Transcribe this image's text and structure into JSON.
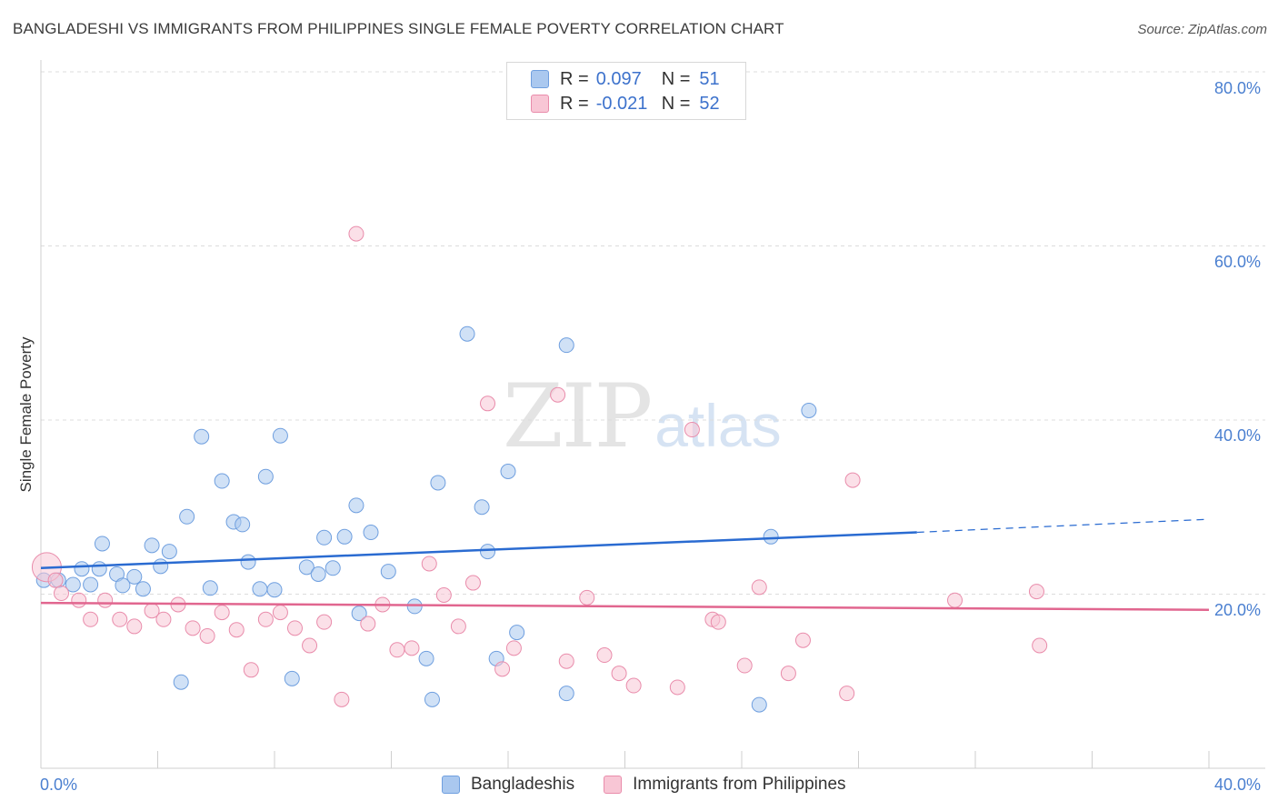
{
  "header": {
    "title": "BANGLADESHI VS IMMIGRANTS FROM PHILIPPINES SINGLE FEMALE POVERTY CORRELATION CHART",
    "source": "Source: ZipAtlas.com"
  },
  "watermark": {
    "zip": "ZIP",
    "atlas": "atlas"
  },
  "legend": {
    "rows": [
      {
        "r_label": "R =",
        "r_value": "0.097",
        "n_label": "N =",
        "n_value": "51",
        "color": "#aac8ef",
        "border": "#6f9fdf"
      },
      {
        "r_label": "R =",
        "r_value": "-0.021",
        "n_label": "N =",
        "n_value": "52",
        "color": "#f8c6d5",
        "border": "#e98cab"
      }
    ]
  },
  "bottom_legend": {
    "items": [
      {
        "label": "Bangladeshis",
        "color": "#aac8ef",
        "border": "#6f9fdf"
      },
      {
        "label": "Immigrants from Philippines",
        "color": "#f8c6d5",
        "border": "#e98cab"
      }
    ]
  },
  "chart_data": {
    "type": "scatter",
    "title": "BANGLADESHI VS IMMIGRANTS FROM PHILIPPINES SINGLE FEMALE POVERTY CORRELATION CHART",
    "xlabel": "",
    "ylabel": "Single Female Poverty",
    "xlim": [
      0,
      40
    ],
    "ylim": [
      0,
      80
    ],
    "x_tick_labels": [
      "0.0%",
      "40.0%"
    ],
    "y_ticks": [
      20,
      40,
      60,
      80
    ],
    "y_tick_labels": [
      "20.0%",
      "40.0%",
      "60.0%",
      "80.0%"
    ],
    "grid": true,
    "series": [
      {
        "name": "Bangladeshis",
        "color": "#6f9fdf",
        "fill": "#aac8ef",
        "line_color": "#2a6bd1",
        "trend": {
          "x0": 0,
          "y0": 23.0,
          "x1": 30.0,
          "y1": 27.1,
          "dashed_to_x": 40,
          "dashed_to_y": 28.6
        },
        "points": [
          [
            0.1,
            21.6
          ],
          [
            0.6,
            21.6
          ],
          [
            1.1,
            21.1
          ],
          [
            1.4,
            22.9
          ],
          [
            1.7,
            21.1
          ],
          [
            2.0,
            22.9
          ],
          [
            2.1,
            25.8
          ],
          [
            2.6,
            22.3
          ],
          [
            2.8,
            21.0
          ],
          [
            3.2,
            22.0
          ],
          [
            3.5,
            20.6
          ],
          [
            3.8,
            25.6
          ],
          [
            4.1,
            23.2
          ],
          [
            4.4,
            24.9
          ],
          [
            4.8,
            9.9
          ],
          [
            5.0,
            28.9
          ],
          [
            5.5,
            38.1
          ],
          [
            5.8,
            20.7
          ],
          [
            6.2,
            33.0
          ],
          [
            6.6,
            28.3
          ],
          [
            6.9,
            28.0
          ],
          [
            7.1,
            23.7
          ],
          [
            7.5,
            20.6
          ],
          [
            7.7,
            33.5
          ],
          [
            8.0,
            20.5
          ],
          [
            8.2,
            38.2
          ],
          [
            8.6,
            10.3
          ],
          [
            9.1,
            23.1
          ],
          [
            9.5,
            22.3
          ],
          [
            9.7,
            26.5
          ],
          [
            10.0,
            23.0
          ],
          [
            10.4,
            26.6
          ],
          [
            10.8,
            30.2
          ],
          [
            10.9,
            17.8
          ],
          [
            11.3,
            27.1
          ],
          [
            11.9,
            22.6
          ],
          [
            12.8,
            18.6
          ],
          [
            13.2,
            12.6
          ],
          [
            13.4,
            7.9
          ],
          [
            13.6,
            32.8
          ],
          [
            14.6,
            49.9
          ],
          [
            15.1,
            30.0
          ],
          [
            15.3,
            24.9
          ],
          [
            15.6,
            12.6
          ],
          [
            16.0,
            34.1
          ],
          [
            16.3,
            15.6
          ],
          [
            18.0,
            48.6
          ],
          [
            18.0,
            8.6
          ],
          [
            24.6,
            7.3
          ],
          [
            25.0,
            26.6
          ],
          [
            26.3,
            41.1
          ]
        ]
      },
      {
        "name": "Immigrants from Philippines",
        "color": "#e98cab",
        "fill": "#f8c6d5",
        "line_color": "#e1668f",
        "trend": {
          "x0": 0,
          "y0": 19.0,
          "x1": 40,
          "y1": 18.2
        },
        "points": [
          [
            0.2,
            23.1
          ],
          [
            0.5,
            21.6
          ],
          [
            0.7,
            20.1
          ],
          [
            1.3,
            19.3
          ],
          [
            1.7,
            17.1
          ],
          [
            2.2,
            19.3
          ],
          [
            2.7,
            17.1
          ],
          [
            3.2,
            16.3
          ],
          [
            3.8,
            18.1
          ],
          [
            4.2,
            17.1
          ],
          [
            4.7,
            18.8
          ],
          [
            5.2,
            16.1
          ],
          [
            5.7,
            15.2
          ],
          [
            6.2,
            17.9
          ],
          [
            6.7,
            15.9
          ],
          [
            7.2,
            11.3
          ],
          [
            7.7,
            17.1
          ],
          [
            8.2,
            17.9
          ],
          [
            8.7,
            16.1
          ],
          [
            9.2,
            14.1
          ],
          [
            9.7,
            16.8
          ],
          [
            10.3,
            7.9
          ],
          [
            10.8,
            61.4
          ],
          [
            11.2,
            16.6
          ],
          [
            11.7,
            18.8
          ],
          [
            12.2,
            13.6
          ],
          [
            12.7,
            13.8
          ],
          [
            13.3,
            23.5
          ],
          [
            13.8,
            19.9
          ],
          [
            14.3,
            16.3
          ],
          [
            14.8,
            21.3
          ],
          [
            15.3,
            41.9
          ],
          [
            15.8,
            11.4
          ],
          [
            16.2,
            13.8
          ],
          [
            17.7,
            42.9
          ],
          [
            18.0,
            12.3
          ],
          [
            18.7,
            19.6
          ],
          [
            19.3,
            13.0
          ],
          [
            19.8,
            10.9
          ],
          [
            20.3,
            9.5
          ],
          [
            21.8,
            9.3
          ],
          [
            22.3,
            38.9
          ],
          [
            23.0,
            17.1
          ],
          [
            23.2,
            16.8
          ],
          [
            24.1,
            11.8
          ],
          [
            24.6,
            20.8
          ],
          [
            25.6,
            10.9
          ],
          [
            26.1,
            14.7
          ],
          [
            27.6,
            8.6
          ],
          [
            27.8,
            33.1
          ],
          [
            31.3,
            19.3
          ],
          [
            34.1,
            20.3
          ],
          [
            34.2,
            14.1
          ]
        ]
      }
    ]
  }
}
